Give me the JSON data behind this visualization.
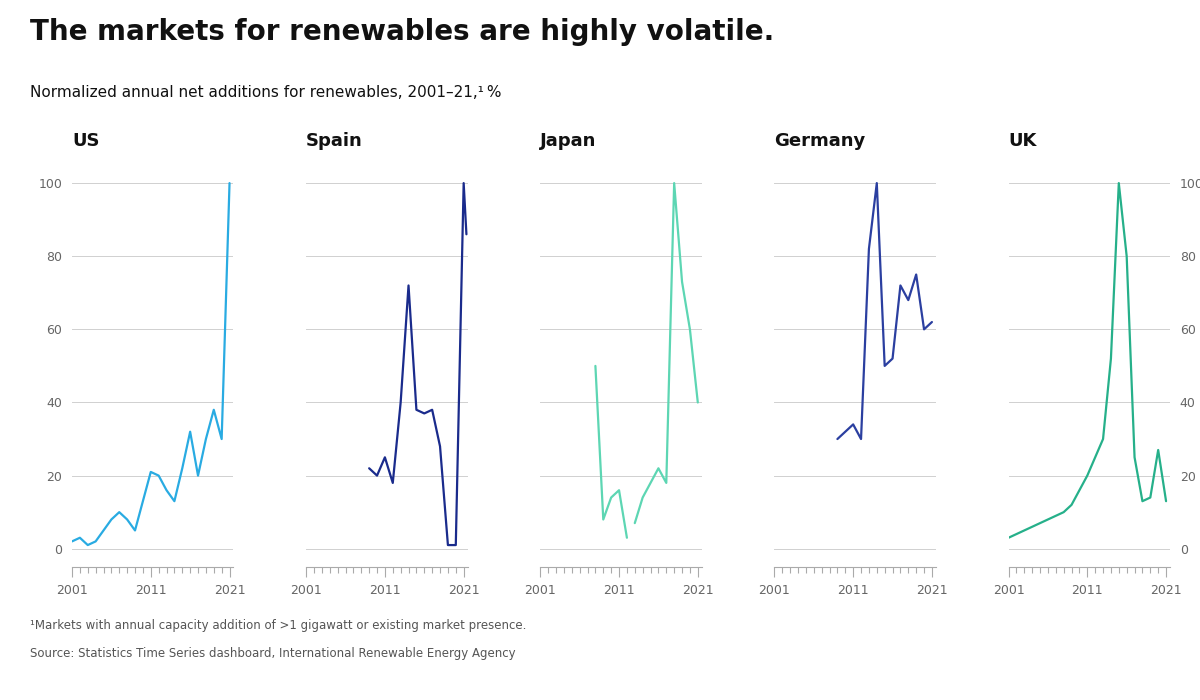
{
  "title": "The markets for renewables are highly volatile.",
  "subtitle": "Normalized annual net additions for renewables, 2001–21,¹ %",
  "footnote1": "¹Markets with annual capacity addition of >1 gigawatt or existing market presence.",
  "footnote2": "Source: Statistics Time Series dashboard, International Renewable Energy Agency",
  "panels": [
    "US",
    "Spain",
    "Japan",
    "Germany",
    "UK"
  ],
  "colors": [
    "#29ABE2",
    "#1A2B8C",
    "#5DD6B3",
    "#2B3FA0",
    "#26B08A"
  ],
  "US_years": [
    2001,
    2002,
    2003,
    2004,
    2005,
    2006,
    2007,
    2008,
    2009,
    2010,
    2011,
    2012,
    2013,
    2014,
    2015,
    2016,
    2017,
    2018,
    2019,
    2020,
    2021
  ],
  "US_data": [
    2,
    3,
    1,
    2,
    5,
    8,
    10,
    8,
    5,
    13,
    21,
    20,
    16,
    13,
    22,
    32,
    20,
    30,
    38,
    30,
    100
  ],
  "Spain_years": [
    2001,
    2002,
    2003,
    2004,
    2005,
    2006,
    2007,
    2008,
    2009,
    2010,
    2011,
    2012,
    2013,
    2014,
    2015,
    2016,
    2017,
    2018,
    2019,
    2019.6,
    2020,
    2021,
    2021.35
  ],
  "Spain_data": [
    null,
    null,
    null,
    null,
    null,
    null,
    null,
    null,
    22,
    20,
    25,
    18,
    40,
    72,
    38,
    37,
    38,
    28,
    1,
    1,
    1,
    100,
    86
  ],
  "Japan_years": [
    2001,
    2002,
    2003,
    2004,
    2005,
    2006,
    2007,
    2008,
    2009,
    2010,
    2011,
    2012,
    2013,
    2014,
    2015,
    2016,
    2017,
    2018,
    2019,
    2020,
    2021
  ],
  "Japan_data": [
    null,
    null,
    null,
    null,
    null,
    null,
    null,
    null,
    null,
    null,
    null,
    null,
    null,
    null,
    null,
    null,
    null,
    null,
    null,
    null,
    null
  ],
  "Japan_seg1_years": [
    2008,
    2009,
    2010,
    2011,
    2012
  ],
  "Japan_seg1_data": [
    50,
    8,
    14,
    16,
    3
  ],
  "Japan_seg2_years": [
    2013,
    2014,
    2015,
    2016,
    2017,
    2018,
    2019,
    2020,
    2021
  ],
  "Japan_seg2_data": [
    7,
    14,
    18,
    22,
    18,
    100,
    73,
    60,
    40
  ],
  "Germany_years": [
    2001,
    2002,
    2003,
    2004,
    2005,
    2006,
    2007,
    2008,
    2009,
    2010,
    2011,
    2012,
    2013,
    2014,
    2015,
    2016,
    2017,
    2018,
    2019,
    2020,
    2021
  ],
  "Germany_data": [
    null,
    null,
    null,
    null,
    null,
    null,
    null,
    null,
    30,
    32,
    34,
    30,
    82,
    100,
    50,
    52,
    72,
    68,
    75,
    60,
    62
  ],
  "UK_years": [
    2001,
    2002,
    2003,
    2004,
    2005,
    2006,
    2007,
    2008,
    2009,
    2010,
    2011,
    2012,
    2013,
    2014,
    2015,
    2016,
    2017,
    2018,
    2019,
    2020,
    2021
  ],
  "UK_data": [
    3,
    4,
    5,
    6,
    7,
    8,
    9,
    10,
    12,
    16,
    20,
    25,
    30,
    52,
    100,
    80,
    25,
    13,
    14,
    27,
    13
  ],
  "ylim_bottom": -5,
  "ylim_top": 107,
  "yticks": [
    0,
    20,
    40,
    60,
    80,
    100
  ],
  "xtick_labels": [
    2001,
    2011,
    2021
  ],
  "background_color": "#ffffff",
  "grid_color": "#d0d0d0",
  "title_fontsize": 20,
  "subtitle_fontsize": 11,
  "panel_title_fontsize": 13,
  "tick_fontsize": 9,
  "footnote_fontsize": 8.5,
  "line_width": 1.6
}
